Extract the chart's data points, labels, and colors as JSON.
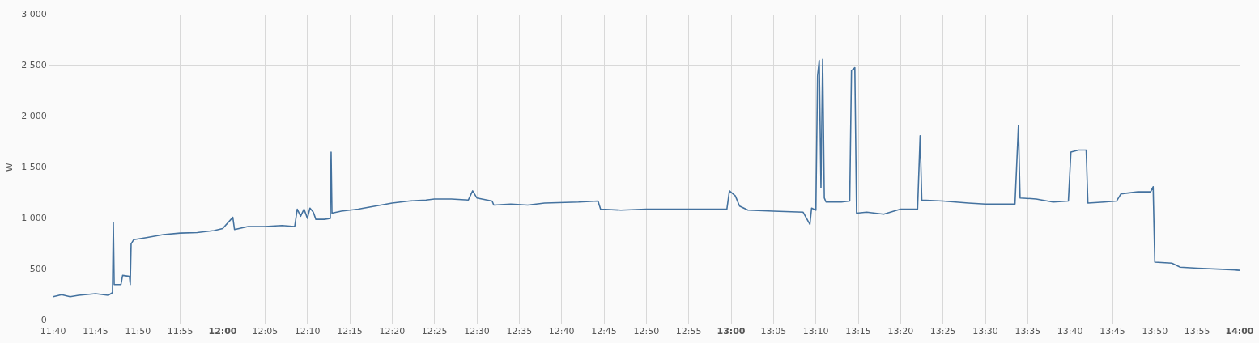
{
  "chart_data": {
    "type": "line",
    "ylabel": "W",
    "color": "#44729f",
    "grid": true,
    "legend": false,
    "marker": "none",
    "line_style": "solid",
    "x": [
      11.6667,
      11.6833,
      11.7,
      11.7167,
      11.75,
      11.775,
      11.7833,
      11.785,
      11.7867,
      11.8,
      11.8033,
      11.8167,
      11.8183,
      11.82,
      11.825,
      11.85,
      11.8833,
      11.9167,
      11.95,
      11.9833,
      12,
      12.02,
      12.0233,
      12.05,
      12.0833,
      12.1167,
      12.1417,
      12.1467,
      12.1533,
      12.16,
      12.1667,
      12.1717,
      12.1783,
      12.1833,
      12.2,
      12.2117,
      12.2133,
      12.215,
      12.2333,
      12.2667,
      12.3,
      12.3333,
      12.3667,
      12.4,
      12.4167,
      12.45,
      12.4833,
      12.4917,
      12.5,
      12.53,
      12.5333,
      12.5667,
      12.6,
      12.6333,
      12.7,
      12.7383,
      12.7433,
      12.7833,
      12.8333,
      12.9167,
      12.9917,
      12.9967,
      13.0083,
      13.0167,
      13.0333,
      13.0833,
      13.1417,
      13.155,
      13.1583,
      13.1667,
      13.17,
      13.1733,
      13.1767,
      13.18,
      13.1833,
      13.1867,
      13.2167,
      13.2333,
      13.2367,
      13.2433,
      13.2467,
      13.2667,
      13.3,
      13.3333,
      13.3667,
      13.3717,
      13.375,
      13.4167,
      13.4667,
      13.5,
      13.5583,
      13.565,
      13.5683,
      13.6,
      13.6333,
      13.6633,
      13.6683,
      13.6833,
      13.6983,
      13.7017,
      13.7333,
      13.7583,
      13.7667,
      13.8,
      13.825,
      13.83,
      13.8333,
      13.8667,
      13.8833,
      13.9167,
      13.9667,
      14
    ],
    "values": [
      230,
      250,
      230,
      245,
      260,
      245,
      270,
      960,
      350,
      350,
      440,
      430,
      350,
      750,
      790,
      810,
      840,
      855,
      860,
      880,
      900,
      1010,
      890,
      920,
      920,
      930,
      920,
      1090,
      1020,
      1090,
      1000,
      1100,
      1060,
      990,
      990,
      1000,
      1650,
      1050,
      1070,
      1090,
      1120,
      1150,
      1170,
      1180,
      1190,
      1190,
      1180,
      1270,
      1200,
      1170,
      1130,
      1140,
      1130,
      1150,
      1160,
      1170,
      1090,
      1080,
      1090,
      1090,
      1090,
      1270,
      1220,
      1120,
      1080,
      1070,
      1060,
      940,
      1100,
      1080,
      2400,
      2550,
      1300,
      2560,
      1200,
      1160,
      1160,
      1170,
      2450,
      2480,
      1050,
      1060,
      1040,
      1090,
      1090,
      1810,
      1180,
      1170,
      1150,
      1140,
      1140,
      1910,
      1200,
      1190,
      1160,
      1170,
      1650,
      1670,
      1670,
      1150,
      1160,
      1170,
      1240,
      1260,
      1260,
      1310,
      570,
      560,
      520,
      510,
      500,
      490
    ],
    "xlim": [
      11.6667,
      14
    ],
    "xticks": [
      {
        "value": 11.6667,
        "label": "11:40"
      },
      {
        "value": 11.75,
        "label": "11:45"
      },
      {
        "value": 11.8333,
        "label": "11:50"
      },
      {
        "value": 11.9167,
        "label": "11:55"
      },
      {
        "value": 12,
        "label": "12:00"
      },
      {
        "value": 12.0833,
        "label": "12:05"
      },
      {
        "value": 12.1667,
        "label": "12:10"
      },
      {
        "value": 12.25,
        "label": "12:15"
      },
      {
        "value": 12.3333,
        "label": "12:20"
      },
      {
        "value": 12.4167,
        "label": "12:25"
      },
      {
        "value": 12.5,
        "label": "12:30"
      },
      {
        "value": 12.5833,
        "label": "12:35"
      },
      {
        "value": 12.6667,
        "label": "12:40"
      },
      {
        "value": 12.75,
        "label": "12:45"
      },
      {
        "value": 12.8333,
        "label": "12:50"
      },
      {
        "value": 12.9167,
        "label": "12:55"
      },
      {
        "value": 13,
        "label": "13:00"
      },
      {
        "value": 13.0833,
        "label": "13:05"
      },
      {
        "value": 13.1667,
        "label": "13:10"
      },
      {
        "value": 13.25,
        "label": "13:15"
      },
      {
        "value": 13.3333,
        "label": "13:20"
      },
      {
        "value": 13.4167,
        "label": "13:25"
      },
      {
        "value": 13.5,
        "label": "13:30"
      },
      {
        "value": 13.5833,
        "label": "13:35"
      },
      {
        "value": 13.6667,
        "label": "13:40"
      },
      {
        "value": 13.75,
        "label": "13:45"
      },
      {
        "value": 13.8333,
        "label": "13:50"
      },
      {
        "value": 13.9167,
        "label": "13:55"
      },
      {
        "value": 14,
        "label": "14:00"
      }
    ],
    "ylim": [
      0,
      3000
    ],
    "yticks": [
      0,
      500,
      {
        "value": 1000,
        "label": "1 000"
      },
      {
        "value": 1500,
        "label": "1 500"
      },
      {
        "value": 2000,
        "label": "2 000"
      },
      {
        "value": 2500,
        "label": "2 500"
      },
      {
        "value": 3000,
        "label": "3 000"
      }
    ]
  }
}
